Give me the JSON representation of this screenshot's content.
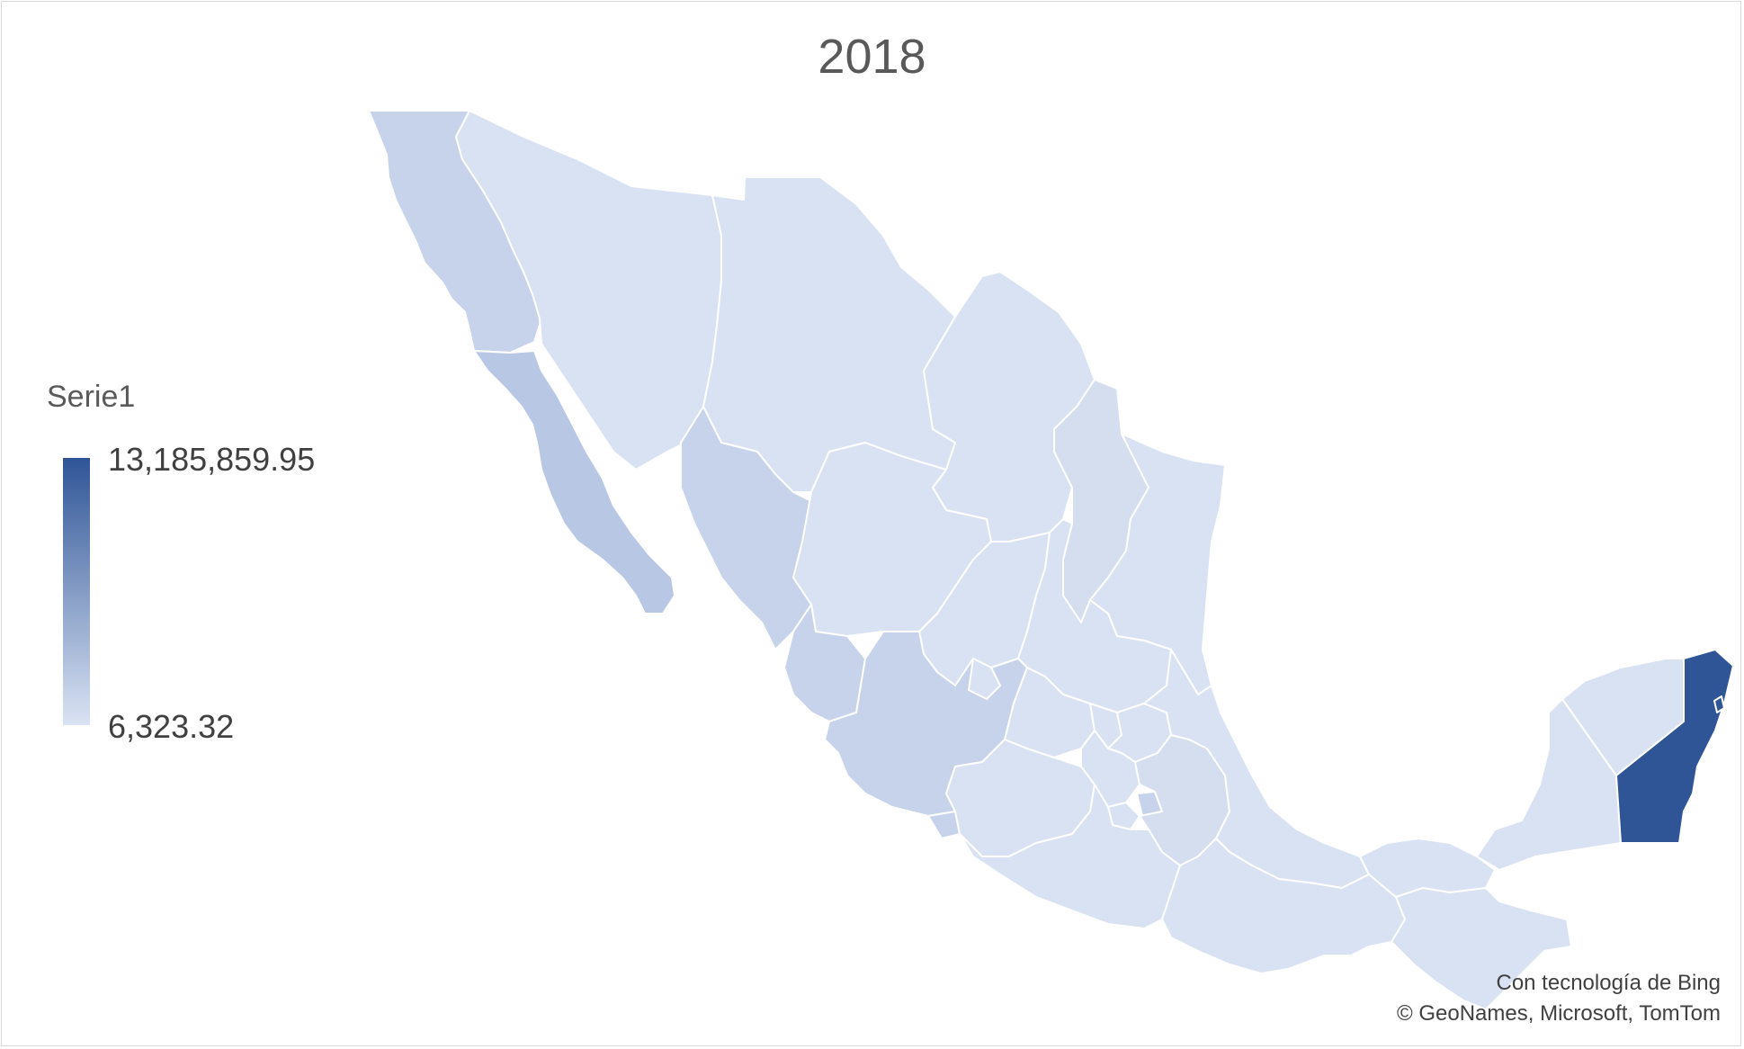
{
  "title": "2018",
  "legend": {
    "series_name": "Serie1",
    "max_label": "13,185,859.95",
    "min_label": "6,323.32",
    "color_max": "#2f5597",
    "color_min": "#dae3f3"
  },
  "credits": {
    "line1": "Con tecnología de Bing",
    "line2": "© GeoNames, Microsoft, TomTom"
  },
  "map": {
    "type": "choropleth",
    "country": "Mexico",
    "colors": {
      "light": "#d9e2f2",
      "medium": "#c6d3ea",
      "medium_dark": "#b8c7e4",
      "dark": "#2f5597"
    }
  }
}
